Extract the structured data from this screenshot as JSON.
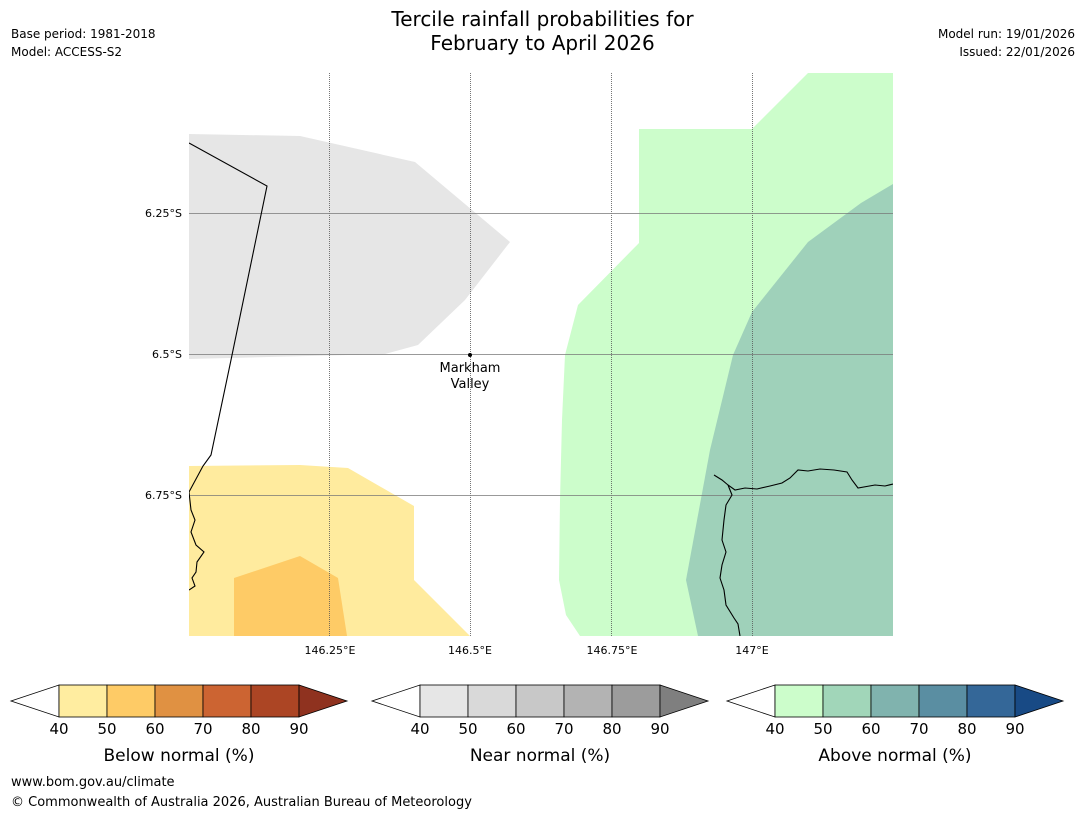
{
  "header": {
    "title_line1": "Tercile rainfall probabilities for",
    "title_line2": "February to April 2026",
    "base_period": "Base period: 1981-2018",
    "model": "Model: ACCESS-S2",
    "model_run": "Model run: 19/01/2026",
    "issued": "Issued: 22/01/2026"
  },
  "map": {
    "lon_labels": [
      "146.25°E",
      "146.5°E",
      "146.75°E",
      "147°E"
    ],
    "lat_labels": [
      "6.25°S",
      "6.5°S",
      "6.75°S"
    ],
    "place_name_line1": "Markham",
    "place_name_line2": "Valley",
    "colors": {
      "below_40": "#ffeb9e",
      "below_50": "#fecb66",
      "near_40": "#e6e6e6",
      "above_40": "#ccfdcb",
      "above_50": "#9fd1ba"
    }
  },
  "legends": [
    {
      "name": "below",
      "label": "Below normal (%)",
      "ticks": [
        "40",
        "50",
        "60",
        "70",
        "80",
        "90"
      ],
      "colors": [
        "#ffeda0",
        "#fecb66",
        "#e09142",
        "#cc6432",
        "#ac4524",
        "#8f321f"
      ]
    },
    {
      "name": "near",
      "label": "Near normal (%)",
      "ticks": [
        "40",
        "50",
        "60",
        "70",
        "80",
        "90"
      ],
      "colors": [
        "#e6e6e6",
        "#d9d9d9",
        "#c8c8c8",
        "#b3b3b3",
        "#9c9c9c",
        "#7f7f7f"
      ]
    },
    {
      "name": "above",
      "label": "Above normal (%)",
      "ticks": [
        "40",
        "50",
        "60",
        "70",
        "80",
        "90"
      ],
      "colors": [
        "#ccfdcb",
        "#a1d6b9",
        "#80b3ae",
        "#5a8ea2",
        "#346798",
        "#184a85"
      ]
    }
  ],
  "footer": {
    "website": "www.bom.gov.au/climate",
    "copyright": "© Commonwealth of Australia 2026, Australian Bureau of Meteorology"
  }
}
